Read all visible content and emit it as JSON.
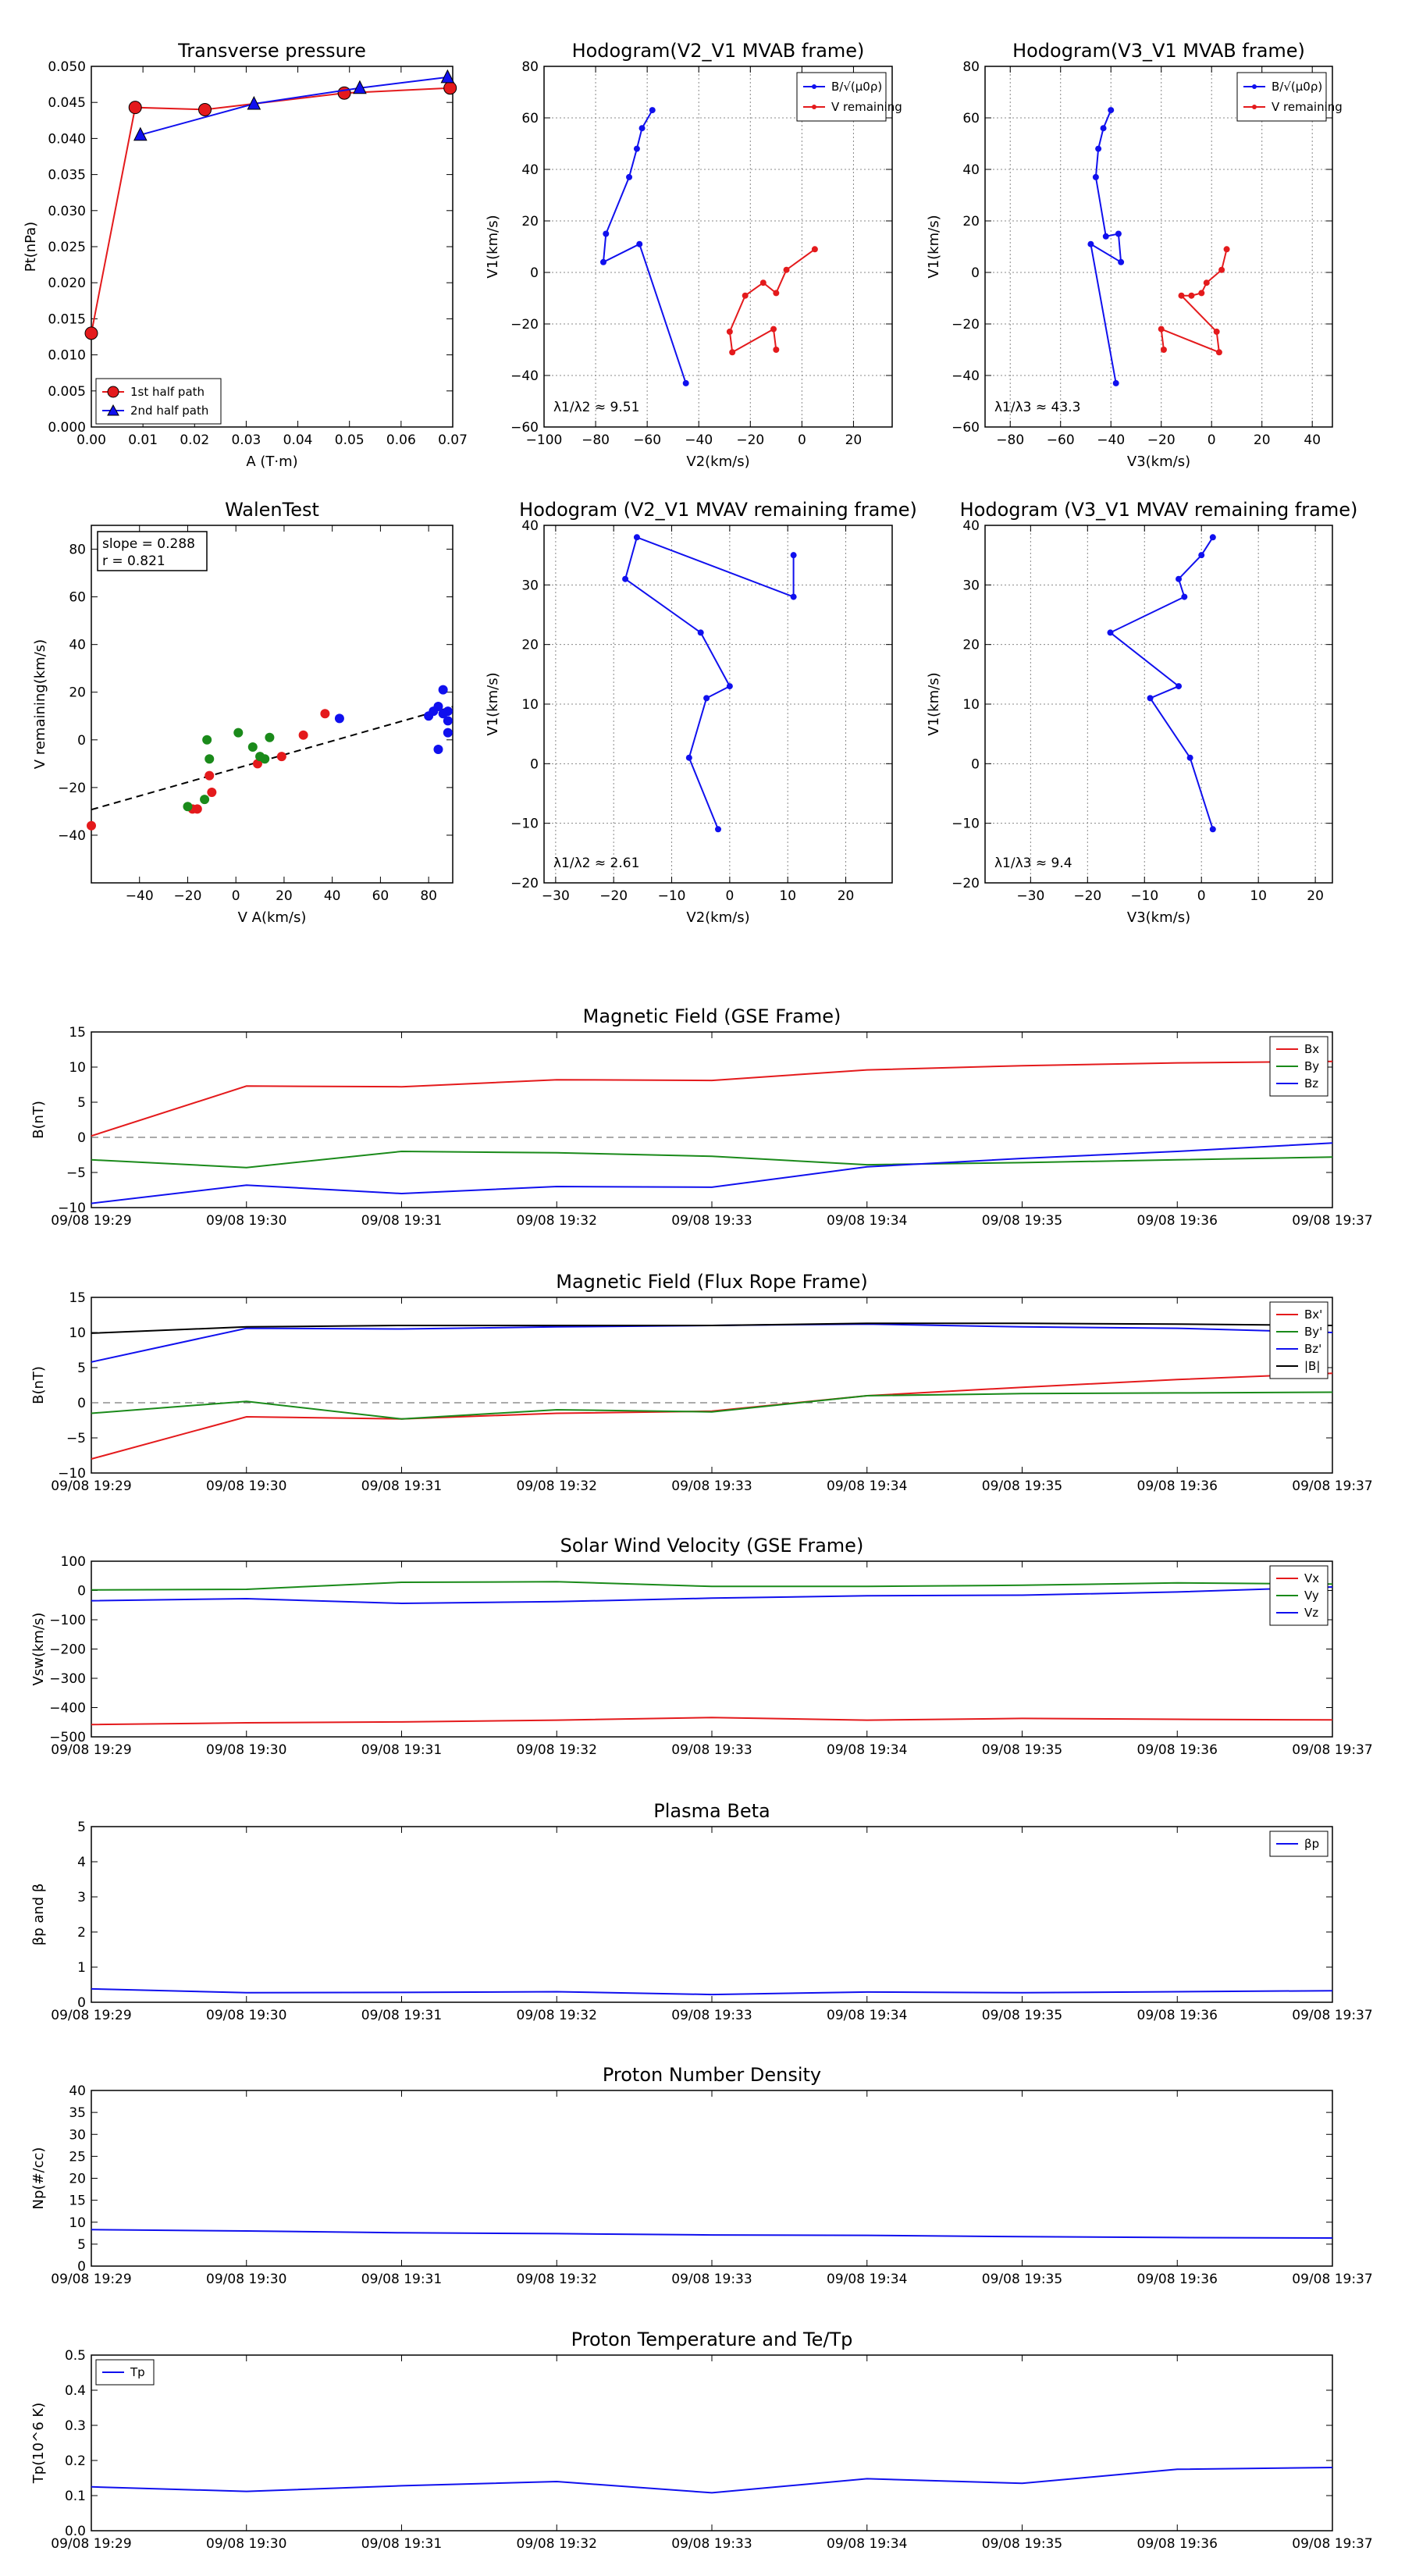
{
  "times": [
    "09/08 19:29",
    "09/08 19:30",
    "09/08 19:31",
    "09/08 19:32",
    "09/08 19:33",
    "09/08 19:34",
    "09/08 19:35",
    "09/08 19:36",
    "09/08 19:37"
  ],
  "colors": {
    "red": "#e41a1c",
    "green": "#1a8a1a",
    "blue": "#1010ee",
    "black": "#000000"
  },
  "chart_data": [
    {
      "id": "transverse-pressure",
      "type": "line",
      "title": "Transverse pressure",
      "xlabel": "A (T·m)",
      "ylabel": "Pt(nPa)",
      "xlim": [
        0,
        0.07
      ],
      "ylim": [
        0,
        0.05
      ],
      "xticks": [
        0,
        0.01,
        0.02,
        0.03,
        0.04,
        0.05,
        0.06,
        0.07
      ],
      "xtick_labels": [
        "0.00",
        "0.01",
        "0.02",
        "0.03",
        "0.04",
        "0.05",
        "0.06",
        "0.07"
      ],
      "yticks": [
        0,
        0.005,
        0.01,
        0.015,
        0.02,
        0.025,
        0.03,
        0.035,
        0.04,
        0.045,
        0.05
      ],
      "ytick_labels": [
        "0.000",
        "0.005",
        "0.010",
        "0.015",
        "0.020",
        "0.025",
        "0.030",
        "0.035",
        "0.040",
        "0.045",
        "0.050"
      ],
      "legend": "bottom-left",
      "series": [
        {
          "name": "1st half path",
          "color": "red",
          "marker": "circle",
          "x": [
            0.0,
            0.0085,
            0.022,
            0.049,
            0.0695
          ],
          "y": [
            0.013,
            0.0443,
            0.044,
            0.0463,
            0.047
          ]
        },
        {
          "name": "2nd half path",
          "color": "blue",
          "marker": "triangle",
          "x": [
            0.0095,
            0.0315,
            0.052,
            0.069
          ],
          "y": [
            0.0405,
            0.0448,
            0.047,
            0.0485
          ]
        }
      ]
    },
    {
      "id": "hodogram-v2v1-mvab",
      "type": "scatter",
      "title": "Hodogram(V2_V1 MVAB frame)",
      "xlabel": "V2(km/s)",
      "ylabel": "V1(km/s)",
      "xlim": [
        -100,
        35
      ],
      "ylim": [
        -60,
        80
      ],
      "xticks": [
        -100,
        -80,
        -60,
        -40,
        -20,
        0,
        20
      ],
      "yticks": [
        -60,
        -40,
        -20,
        0,
        20,
        40,
        60,
        80
      ],
      "grid": true,
      "legend": "top-right",
      "annotation": "λ1/λ2 ≈ 9.51",
      "series": [
        {
          "name": "B/√(μ0ρ)",
          "color": "blue",
          "x": [
            -45,
            -63,
            -77,
            -76,
            -67,
            -64,
            -62,
            -58
          ],
          "y": [
            -43,
            11,
            4,
            15,
            37,
            48,
            56,
            63
          ]
        },
        {
          "name": "V remaining",
          "color": "red",
          "x": [
            5,
            -6,
            -10,
            -15,
            -22,
            -28,
            -27,
            -11,
            -10
          ],
          "y": [
            9,
            1,
            -8,
            -4,
            -9,
            -23,
            -31,
            -22,
            -30
          ]
        }
      ]
    },
    {
      "id": "hodogram-v3v1-mvab",
      "type": "scatter",
      "title": "Hodogram(V3_V1 MVAB frame)",
      "xlabel": "V3(km/s)",
      "ylabel": "V1(km/s)",
      "xlim": [
        -90,
        48
      ],
      "ylim": [
        -60,
        80
      ],
      "xticks": [
        -80,
        -60,
        -40,
        -20,
        0,
        20,
        40
      ],
      "yticks": [
        -60,
        -40,
        -20,
        0,
        20,
        40,
        60,
        80
      ],
      "grid": true,
      "legend": "top-right",
      "annotation": "λ1/λ3 ≈ 43.3",
      "series": [
        {
          "name": "B/√(μ0ρ)",
          "color": "blue",
          "x": [
            -38,
            -48,
            -36,
            -37,
            -42,
            -46,
            -45,
            -43,
            -40
          ],
          "y": [
            -43,
            11,
            4,
            15,
            14,
            37,
            48,
            56,
            63
          ]
        },
        {
          "name": "V remaining",
          "color": "red",
          "x": [
            6,
            4,
            -2,
            -4,
            -8,
            -12,
            2,
            3,
            -20,
            -19
          ],
          "y": [
            9,
            1,
            -4,
            -8,
            -9,
            -9,
            -23,
            -31,
            -22,
            -30
          ]
        }
      ]
    },
    {
      "id": "walen-test",
      "type": "scatter",
      "title": "WalenTest",
      "xlabel": "V A(km/s)",
      "ylabel": "V remaining(km/s)",
      "xlim": [
        -60,
        90
      ],
      "ylim": [
        -60,
        90
      ],
      "xticks": [
        -40,
        -20,
        0,
        20,
        40,
        60,
        80
      ],
      "yticks": [
        -40,
        -20,
        0,
        20,
        40,
        60,
        80
      ],
      "stats": [
        "slope = 0.288",
        "r = 0.821"
      ],
      "fit": {
        "slope": 0.288,
        "intercept": -12
      },
      "series": [
        {
          "name": "red",
          "color": "red",
          "x": [
            -60,
            -18,
            -16,
            -11,
            -10,
            9,
            19,
            28,
            37
          ],
          "y": [
            -36,
            -29,
            -29,
            -15,
            -22,
            -10,
            -7,
            2,
            11
          ]
        },
        {
          "name": "green",
          "color": "green",
          "x": [
            -13,
            -12,
            -11,
            -20,
            1,
            7,
            10,
            12,
            14
          ],
          "y": [
            -25,
            0,
            -8,
            -28,
            3,
            -3,
            -7,
            -8,
            1
          ]
        },
        {
          "name": "blue",
          "color": "blue",
          "x": [
            43,
            80,
            82,
            84,
            84,
            86,
            88,
            88,
            88,
            86
          ],
          "y": [
            9,
            10,
            12,
            14,
            -4,
            21,
            3,
            12,
            8,
            11
          ]
        }
      ]
    },
    {
      "id": "hodogram-v2v1-mvav",
      "type": "scatter",
      "title": "Hodogram (V2_V1 MVAV remaining frame)",
      "xlabel": "V2(km/s)",
      "ylabel": "V1(km/s)",
      "xlim": [
        -32,
        28
      ],
      "ylim": [
        -20,
        40
      ],
      "xticks": [
        -30,
        -20,
        -10,
        0,
        10,
        20
      ],
      "yticks": [
        -20,
        -10,
        0,
        10,
        20,
        30,
        40
      ],
      "grid": true,
      "annotation": "λ1/λ2 ≈ 2.61",
      "series": [
        {
          "name": "B",
          "color": "blue",
          "x": [
            -2,
            -7,
            -4,
            0,
            -5,
            -18,
            -16,
            11,
            11
          ],
          "y": [
            -11,
            1,
            11,
            13,
            22,
            31,
            38,
            28,
            35
          ]
        }
      ]
    },
    {
      "id": "hodogram-v3v1-mvav",
      "type": "scatter",
      "title": "Hodogram (V3_V1 MVAV remaining frame)",
      "xlabel": "V3(km/s)",
      "ylabel": "V1(km/s)",
      "xlim": [
        -38,
        23
      ],
      "ylim": [
        -20,
        40
      ],
      "xticks": [
        -30,
        -20,
        -10,
        0,
        10,
        20
      ],
      "yticks": [
        -20,
        -10,
        0,
        10,
        20,
        30,
        40
      ],
      "grid": true,
      "annotation": "λ1/λ3 ≈ 9.4",
      "series": [
        {
          "name": "B",
          "color": "blue",
          "x": [
            2,
            -2,
            -9,
            -4,
            -16,
            -3,
            -4,
            0,
            2
          ],
          "y": [
            -11,
            1,
            11,
            13,
            22,
            28,
            31,
            35,
            38
          ]
        }
      ]
    },
    {
      "id": "mag-gse",
      "type": "line",
      "title": "Magnetic Field (GSE Frame)",
      "ylabel": "B(nT)",
      "ylim": [
        -10,
        15
      ],
      "yticks": [
        -10,
        -5,
        0,
        5,
        10,
        15
      ],
      "zero_line": true,
      "legend": "top-right",
      "series": [
        {
          "name": "Bx",
          "color": "red",
          "t": [
            0,
            1,
            2,
            3,
            4,
            5,
            6,
            7,
            8
          ],
          "values": [
            0.2,
            7.3,
            7.2,
            8.2,
            8.1,
            9.6,
            10.2,
            10.6,
            10.8
          ]
        },
        {
          "name": "By",
          "color": "green",
          "t": [
            0,
            1,
            2,
            3,
            4,
            5,
            6,
            7,
            8
          ],
          "values": [
            -3.2,
            -4.3,
            -2.0,
            -2.2,
            -2.7,
            -3.9,
            -3.6,
            -3.2,
            -2.8
          ]
        },
        {
          "name": "Bz",
          "color": "blue",
          "t": [
            0,
            1,
            2,
            3,
            4,
            5,
            6,
            7,
            8
          ],
          "values": [
            -9.4,
            -6.8,
            -8.0,
            -7.0,
            -7.1,
            -4.2,
            -3.0,
            -2.0,
            -0.8
          ]
        }
      ]
    },
    {
      "id": "mag-flux-rope",
      "type": "line",
      "title": "Magnetic Field (Flux Rope Frame)",
      "ylabel": "B(nT)",
      "ylim": [
        -10,
        15
      ],
      "yticks": [
        -10,
        -5,
        0,
        5,
        10,
        15
      ],
      "zero_line": true,
      "legend": "top-right",
      "series": [
        {
          "name": "Bx'",
          "color": "red",
          "t": [
            0,
            1,
            2,
            3,
            4,
            5,
            6,
            7,
            8
          ],
          "values": [
            -8.0,
            -2.0,
            -2.3,
            -1.5,
            -1.2,
            1.0,
            2.2,
            3.3,
            4.2
          ]
        },
        {
          "name": "By'",
          "color": "green",
          "t": [
            0,
            1,
            2,
            3,
            4,
            5,
            6,
            7,
            8
          ],
          "values": [
            -1.5,
            0.2,
            -2.3,
            -1.0,
            -1.3,
            1.0,
            1.3,
            1.4,
            1.5
          ]
        },
        {
          "name": "Bz'",
          "color": "blue",
          "t": [
            0,
            1,
            2,
            3,
            4,
            5,
            6,
            7,
            8
          ],
          "values": [
            5.8,
            10.6,
            10.5,
            10.8,
            11.0,
            11.2,
            10.8,
            10.6,
            10.0
          ]
        },
        {
          "name": "|B|",
          "color": "black",
          "t": [
            0,
            1,
            2,
            3,
            4,
            5,
            6,
            7,
            8
          ],
          "values": [
            9.9,
            10.8,
            11.0,
            11.0,
            11.0,
            11.3,
            11.3,
            11.2,
            11.0
          ]
        }
      ]
    },
    {
      "id": "solar-wind-velocity",
      "type": "line",
      "title": "Solar Wind Velocity (GSE Frame)",
      "ylabel": "Vsw(km/s)",
      "ylim": [
        -500,
        100
      ],
      "yticks": [
        -500,
        -400,
        -300,
        -200,
        -100,
        0,
        100
      ],
      "legend": "top-right",
      "series": [
        {
          "name": "Vx",
          "color": "red",
          "t": [
            0,
            1,
            2,
            3,
            4,
            5,
            6,
            7,
            8
          ],
          "values": [
            -458,
            -452,
            -449,
            -443,
            -434,
            -443,
            -437,
            -440,
            -442
          ]
        },
        {
          "name": "Vy",
          "color": "green",
          "t": [
            0,
            1,
            2,
            3,
            4,
            5,
            6,
            7,
            8
          ],
          "values": [
            2,
            4,
            28,
            30,
            14,
            14,
            18,
            26,
            22
          ]
        },
        {
          "name": "Vz",
          "color": "blue",
          "t": [
            0,
            1,
            2,
            3,
            4,
            5,
            6,
            7,
            8
          ],
          "values": [
            -35,
            -28,
            -44,
            -38,
            -26,
            -18,
            -16,
            -5,
            12
          ]
        }
      ]
    },
    {
      "id": "plasma-beta",
      "type": "line",
      "title": "Plasma Beta",
      "ylabel": "βp and β",
      "ylim": [
        0,
        5
      ],
      "yticks": [
        0,
        1,
        2,
        3,
        4,
        5
      ],
      "legend": "top-right",
      "series": [
        {
          "name": "βp",
          "color": "blue",
          "t": [
            0,
            1,
            2,
            3,
            4,
            5,
            6,
            7,
            8
          ],
          "values": [
            0.38,
            0.27,
            0.28,
            0.3,
            0.22,
            0.29,
            0.27,
            0.3,
            0.33
          ]
        }
      ]
    },
    {
      "id": "proton-density",
      "type": "line",
      "title": "Proton Number Density",
      "ylabel": "Np(#/cc)",
      "ylim": [
        0,
        40
      ],
      "yticks": [
        0,
        5,
        10,
        15,
        20,
        25,
        30,
        35,
        40
      ],
      "series": [
        {
          "name": "Np",
          "color": "blue",
          "t": [
            0,
            1,
            2,
            3,
            4,
            5,
            6,
            7,
            8
          ],
          "values": [
            8.3,
            8.0,
            7.6,
            7.4,
            7.1,
            7.0,
            6.7,
            6.5,
            6.4
          ]
        }
      ]
    },
    {
      "id": "proton-temperature",
      "type": "line",
      "title": "Proton Temperature and Te/Tp",
      "ylabel": "Tp(10^6 K)",
      "ylim": [
        0,
        0.5
      ],
      "yticks": [
        0,
        0.1,
        0.2,
        0.3,
        0.4,
        0.5
      ],
      "ytick_labels": [
        "0.0",
        "0.1",
        "0.2",
        "0.3",
        "0.4",
        "0.5"
      ],
      "legend": "top-left",
      "series": [
        {
          "name": "Tp",
          "color": "blue",
          "t": [
            0,
            1,
            2,
            3,
            4,
            5,
            6,
            7,
            8
          ],
          "values": [
            0.125,
            0.112,
            0.128,
            0.14,
            0.108,
            0.148,
            0.135,
            0.175,
            0.18
          ]
        }
      ]
    }
  ]
}
